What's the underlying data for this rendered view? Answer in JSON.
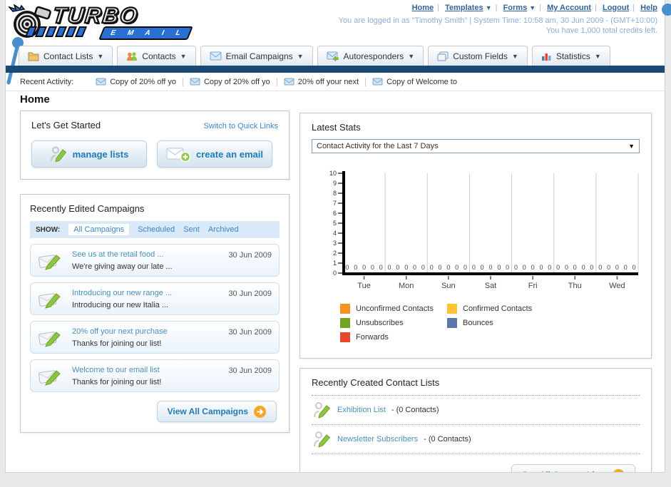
{
  "header": {
    "logo_title": "TURBO",
    "logo_subtitle": "E M A I L",
    "nav_links": [
      {
        "label": "Home",
        "has_dropdown": false
      },
      {
        "label": "Templates",
        "has_dropdown": true
      },
      {
        "label": "Forms",
        "has_dropdown": true
      },
      {
        "label": "My Account",
        "has_dropdown": false
      },
      {
        "label": "Logout",
        "has_dropdown": false
      },
      {
        "label": "Help",
        "has_dropdown": false
      }
    ],
    "login_info": "You are logged in as \"Timothy Smith\" | System Time: 10:58 am, 30 Jun 2009 - (GMT+10:00)",
    "credits_info": "You have 1,000 total credits left."
  },
  "tabs": [
    {
      "label": "Contact Lists",
      "icon": "folder-icon"
    },
    {
      "label": "Contacts",
      "icon": "contacts-icon"
    },
    {
      "label": "Email Campaigns",
      "icon": "envelope-icon"
    },
    {
      "label": "Autoresponders",
      "icon": "autoresponder-icon"
    },
    {
      "label": "Custom Fields",
      "icon": "pages-icon"
    },
    {
      "label": "Statistics",
      "icon": "bar-chart-icon"
    }
  ],
  "recent_activity": {
    "label": "Recent Activity:",
    "items": [
      "Copy of 20% off yo",
      "Copy of 20% off yo",
      "20% off your next",
      "Copy of Welcome to"
    ]
  },
  "main": {
    "page_title": "Home",
    "get_started": {
      "title": "Let's Get Started",
      "switch_link": "Switch to Quick Links",
      "manage_lists_label": "manage lists",
      "create_email_label": "create an email"
    },
    "campaigns": {
      "title": "Recently Edited Campaigns",
      "show_label": "SHOW:",
      "filters": [
        "All Campaigns",
        "Scheduled",
        "Sent",
        "Archived"
      ],
      "active_filter": "All Campaigns",
      "items": [
        {
          "title": "See us at the retail food ...",
          "subtitle": "We're giving away our late ...",
          "date": "30 Jun 2009"
        },
        {
          "title": "Introducing our new range ...",
          "subtitle": "Introducing our new Italia ...",
          "date": "30 Jun 2009"
        },
        {
          "title": "20% off your next purchase",
          "subtitle": "Thanks for joining our list!",
          "date": "30 Jun 2009"
        },
        {
          "title": "Welcome to our email list",
          "subtitle": "Thanks for joining our list!",
          "date": "30 Jun 2009"
        }
      ],
      "view_all_label": "View All Campaigns"
    },
    "stats": {
      "title": "Latest Stats",
      "selector_value": "Contact Activity for the Last 7 Days"
    },
    "contact_lists": {
      "title": "Recently Created Contact Lists",
      "items": [
        {
          "name": "Exhibition List",
          "detail": "- (0 Contacts)"
        },
        {
          "name": "Newsletter Subscribers",
          "detail": "- (0 Contacts)"
        }
      ],
      "see_all_label": "See All Contact Lists"
    }
  },
  "chart_data": {
    "type": "bar",
    "title": "Contact Activity for the Last 7 Days",
    "categories": [
      "Tue",
      "Mon",
      "Sun",
      "Sat",
      "Fri",
      "Thu",
      "Wed"
    ],
    "series": [
      {
        "name": "Unconfirmed Contacts",
        "color": "#f6921e",
        "values": [
          0,
          0,
          0,
          0,
          0,
          0,
          0
        ]
      },
      {
        "name": "Confirmed Contacts",
        "color": "#fdc431",
        "values": [
          0,
          0,
          0,
          0,
          0,
          0,
          0
        ]
      },
      {
        "name": "Unsubscribes",
        "color": "#72a424",
        "values": [
          0,
          0,
          0,
          0,
          0,
          0,
          0
        ]
      },
      {
        "name": "Bounces",
        "color": "#5b77a9",
        "values": [
          0,
          0,
          0,
          0,
          0,
          0,
          0
        ]
      },
      {
        "name": "Forwards",
        "color": "#e8472a",
        "values": [
          0,
          0,
          0,
          0,
          0,
          0,
          0
        ]
      }
    ],
    "ylim": [
      0,
      10
    ],
    "ytick_step": 1,
    "grid": true,
    "legend_position": "bottom",
    "value_labels": true
  },
  "colors": {
    "navy_bar": "#1a4a73",
    "accent_blue": "#3d85c8",
    "button_text": "#1f7ab8",
    "arrow_badge": "#f5a623"
  }
}
